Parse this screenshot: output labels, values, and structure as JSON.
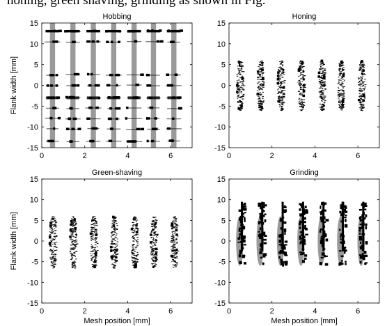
{
  "caption_fragment": "honing, green shaving, grinding as shown in Fig.",
  "chart_data": [
    {
      "type": "scatter",
      "title": "Hobbing",
      "xlabel": "",
      "ylabel": "Flank width [mm]",
      "xlim": [
        0,
        7
      ],
      "ylim": [
        -15,
        15
      ],
      "xticks": [
        "0",
        "2",
        "4",
        "6"
      ],
      "yticks": [
        "-15",
        "-10",
        "-5",
        "0",
        "5",
        "10",
        "15"
      ],
      "grid": false,
      "mesh_positions": [
        0.5,
        1.45,
        2.4,
        3.35,
        4.3,
        5.2,
        6.15
      ],
      "gray_bands": {
        "half_width": 0.12,
        "y_range": [
          -15,
          15
        ]
      },
      "row_levels": [
        13,
        10.5,
        2.5,
        0,
        -3,
        -5.5,
        -8,
        -10.5,
        -13.5
      ],
      "color_primary": "#000000",
      "color_secondary": "#9a9a9a"
    },
    {
      "type": "scatter",
      "title": "Honing",
      "xlabel": "",
      "ylabel": "",
      "xlim": [
        0,
        7
      ],
      "ylim": [
        -15,
        15
      ],
      "xticks": [
        "0",
        "2",
        "4",
        "6"
      ],
      "yticks": [
        "-15",
        "-10",
        "-5",
        "0",
        "5",
        "10",
        "15"
      ],
      "grid": false,
      "mesh_positions": [
        0.5,
        1.45,
        2.4,
        3.35,
        4.3,
        5.2,
        6.15
      ],
      "clusters": [
        {
          "x": 0.5,
          "y_range": [
            -6,
            6
          ]
        },
        {
          "x": 1.45,
          "y_range": [
            -6,
            6
          ]
        },
        {
          "x": 2.4,
          "y_range": [
            -6,
            6
          ]
        },
        {
          "x": 3.35,
          "y_range": [
            -6,
            6
          ]
        },
        {
          "x": 4.3,
          "y_range": [
            -6,
            6
          ]
        },
        {
          "x": 5.2,
          "y_range": [
            -6,
            6
          ]
        },
        {
          "x": 6.15,
          "y_range": [
            -6,
            6
          ]
        }
      ],
      "color_primary": "#000000"
    },
    {
      "type": "scatter",
      "title": "Green-shaving",
      "xlabel": "Mesh position [mm]",
      "ylabel": "Flank width [mm]",
      "xlim": [
        0,
        7
      ],
      "ylim": [
        -15,
        15
      ],
      "xticks": [
        "0",
        "2",
        "4",
        "6"
      ],
      "yticks": [
        "-15",
        "-10",
        "-5",
        "0",
        "5",
        "10",
        "15"
      ],
      "grid": false,
      "mesh_positions": [
        0.5,
        1.45,
        2.4,
        3.35,
        4.3,
        5.2,
        6.15
      ],
      "clusters": [
        {
          "x": 0.5,
          "y_range": [
            -6.5,
            6
          ]
        },
        {
          "x": 1.45,
          "y_range": [
            -6.5,
            6
          ]
        },
        {
          "x": 2.4,
          "y_range": [
            -6.5,
            6
          ]
        },
        {
          "x": 3.35,
          "y_range": [
            -6.5,
            6
          ]
        },
        {
          "x": 4.3,
          "y_range": [
            -6.5,
            6
          ]
        },
        {
          "x": 5.2,
          "y_range": [
            -6.5,
            6
          ]
        },
        {
          "x": 6.15,
          "y_range": [
            -6.5,
            6
          ]
        }
      ],
      "color_primary": "#000000"
    },
    {
      "type": "scatter",
      "title": "Grinding",
      "xlabel": "Mesh position [mm]",
      "ylabel": "",
      "xlim": [
        0,
        7
      ],
      "ylim": [
        -15,
        15
      ],
      "xticks": [
        "0",
        "2",
        "4",
        "6"
      ],
      "yticks": [
        "-15",
        "-10",
        "-5",
        "0",
        "5",
        "10",
        "15"
      ],
      "grid": false,
      "mesh_positions": [
        0.5,
        1.45,
        2.4,
        3.35,
        4.3,
        5.2,
        6.15
      ],
      "gray_ellipses": {
        "y_range": [
          -6,
          6
        ]
      },
      "black_strands_y_range": [
        -5.5,
        9.5
      ],
      "color_primary": "#000000",
      "color_secondary": "#9a9a9a"
    }
  ]
}
